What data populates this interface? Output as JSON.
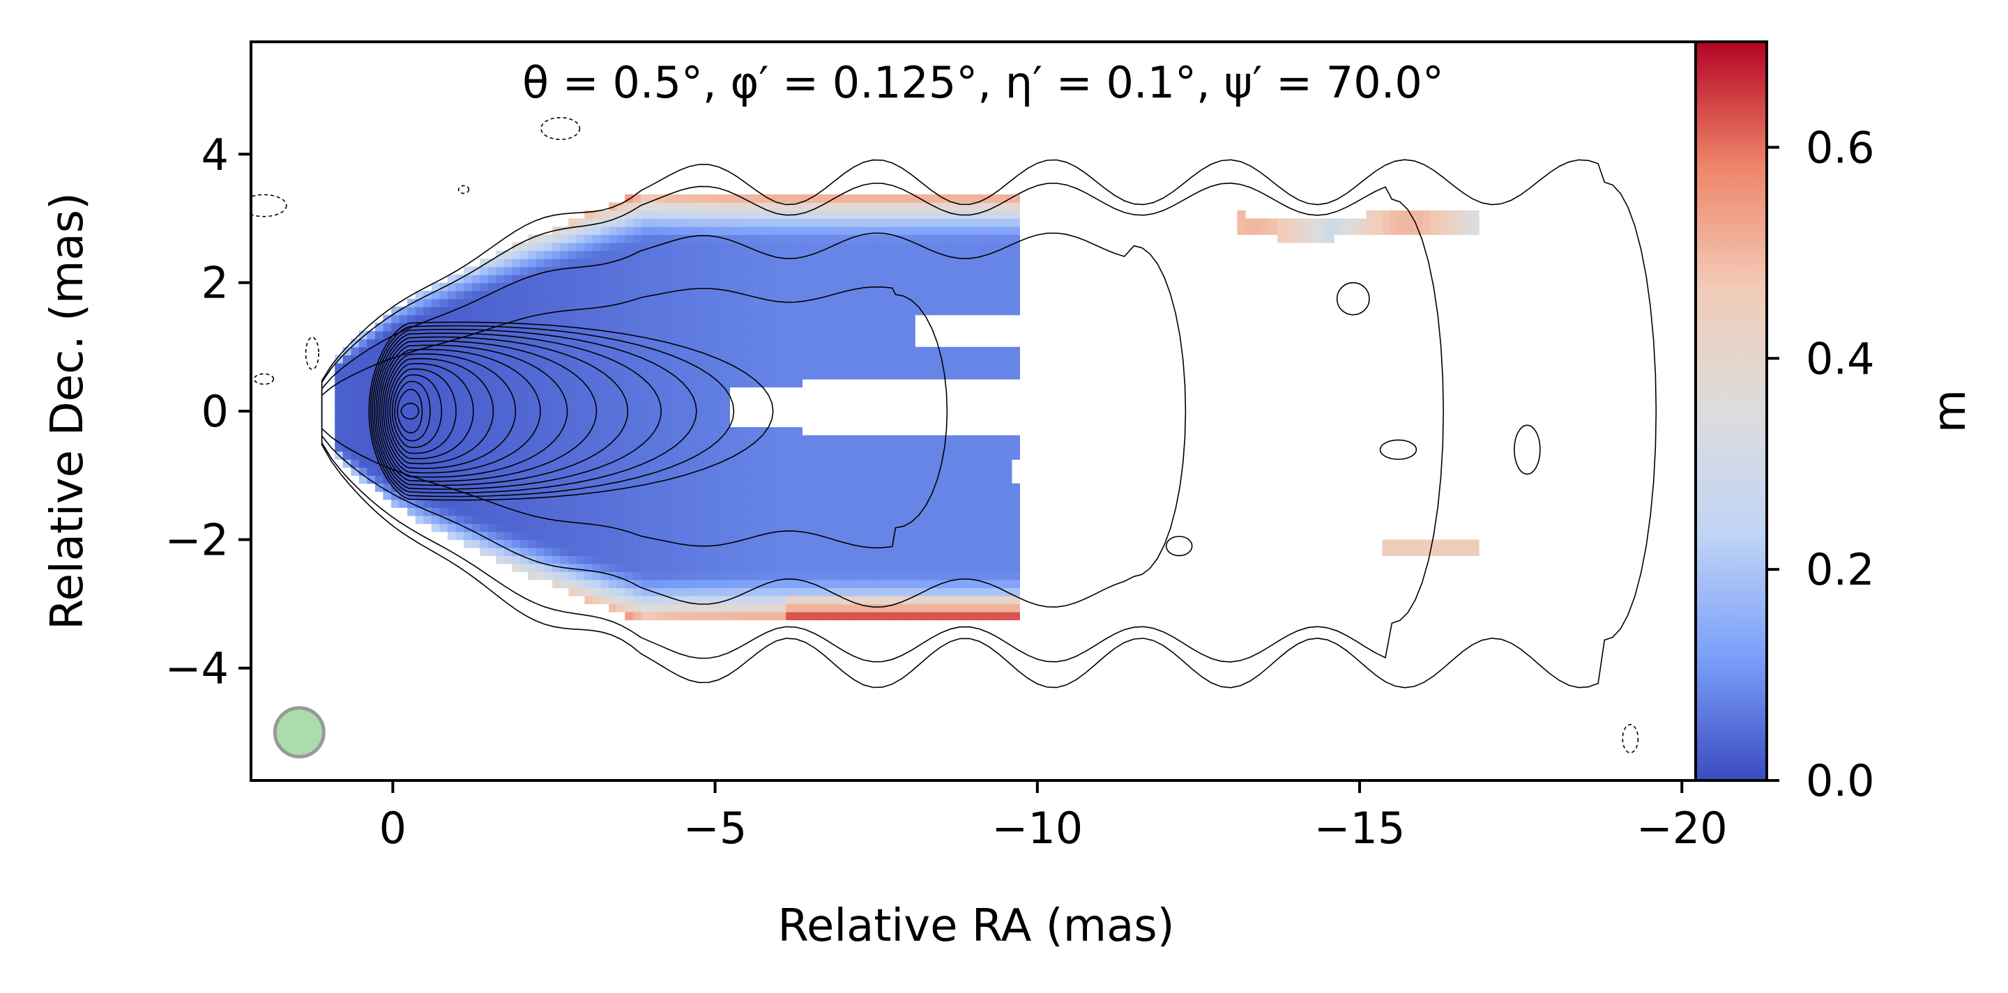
{
  "chart_data": {
    "type": "heatmap",
    "title": "θ = 0.5°,  φ′ = 0.125°,  η′ = 0.1°,  ψ′ = 70.0°",
    "xlabel": "Relative RA (mas)",
    "ylabel": "Relative Dec. (mas)",
    "xlim": [
      2.2,
      -20.3
    ],
    "ylim": [
      -5.75,
      5.75
    ],
    "x_ticks": [
      0,
      -5,
      -10,
      -15,
      -20
    ],
    "x_tick_labels": [
      "0",
      "−5",
      "−10",
      "−15",
      "−20"
    ],
    "y_ticks": [
      -4,
      -2,
      0,
      2,
      4
    ],
    "y_tick_labels": [
      "−4",
      "−2",
      "0",
      "2",
      "4"
    ],
    "colorbar": {
      "label": "m",
      "range": [
        0.0,
        0.7
      ],
      "ticks": [
        0.0,
        0.2,
        0.4,
        0.6
      ],
      "tick_labels": [
        "0.0",
        "0.2",
        "0.4",
        "0.6"
      ],
      "cmap": "coolwarm",
      "colors": [
        "#3b4cc0",
        "#7b9ff9",
        "#c0d4f5",
        "#dddcdc",
        "#f2cbb7",
        "#ee8468",
        "#b40426"
      ]
    },
    "beam": {
      "ra": 1.45,
      "dec": -5.0,
      "radius": 0.38,
      "color": "#8fd18f"
    },
    "core": {
      "ra": -0.25,
      "dec": 0.0
    },
    "contour_color": "#000000"
  }
}
